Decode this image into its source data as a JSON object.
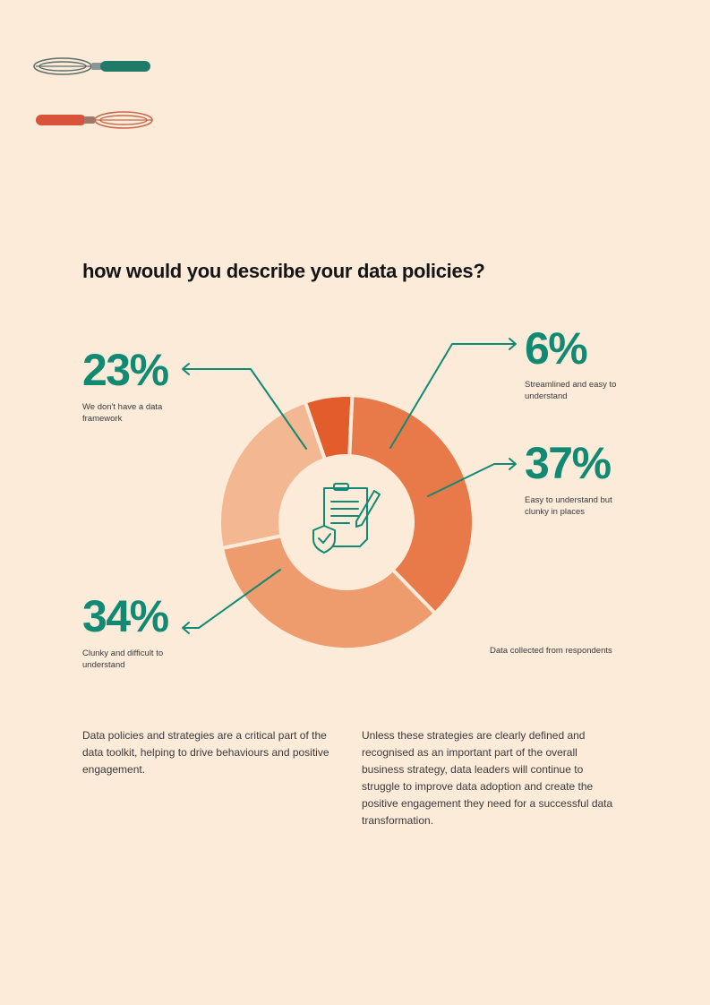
{
  "title": "how would you describe your data policies?",
  "note": "Data collected from respondents",
  "paragraphs": [
    "Data policies and strategies are a critical part of the data toolkit, helping to drive behaviours and positive engagement.",
    "Unless these strategies are clearly defined and recognised as an important part of the overall business strategy, data leaders will continue to struggle to improve data adoption and create the positive engagement they need for a successful data transformation."
  ],
  "icons": {
    "decoration": "whisk-icon",
    "center": "policy-document-shield-icon"
  },
  "colors": {
    "background": "#fdebda",
    "accent": "#128a73",
    "title": "#141414"
  },
  "chart_data": {
    "type": "pie",
    "variant": "donut",
    "title": "how would you describe your data policies?",
    "unit": "%",
    "slices": [
      {
        "label": "Streamlined and easy to understand",
        "value": 6,
        "display": "6%",
        "color": "#e25c2c"
      },
      {
        "label": "Easy to understand but clunky in places",
        "value": 37,
        "display": "37%",
        "color": "#e77a48"
      },
      {
        "label": "Clunky and difficult to understand",
        "value": 34,
        "display": "34%",
        "color": "#ee9b6d"
      },
      {
        "label": "We don't have a data framework",
        "value": 23,
        "display": "23%",
        "color": "#f3b791"
      }
    ]
  }
}
